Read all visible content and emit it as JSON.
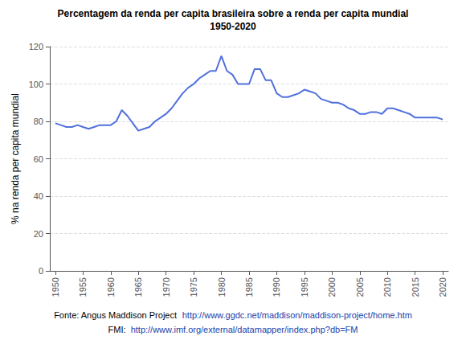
{
  "chart_data": {
    "type": "line",
    "title": "Percentagem da renda per capita brasileira sobre a renda per capita mundial",
    "subtitle": "1950-2020",
    "ylabel": "% na renda per capita mundial",
    "x": [
      1950,
      1951,
      1952,
      1953,
      1954,
      1955,
      1956,
      1957,
      1958,
      1959,
      1960,
      1961,
      1962,
      1963,
      1964,
      1965,
      1966,
      1967,
      1968,
      1969,
      1970,
      1971,
      1972,
      1973,
      1974,
      1975,
      1976,
      1977,
      1978,
      1979,
      1980,
      1981,
      1982,
      1983,
      1984,
      1985,
      1986,
      1987,
      1988,
      1989,
      1990,
      1991,
      1992,
      1993,
      1994,
      1995,
      1996,
      1997,
      1998,
      1999,
      2000,
      2001,
      2002,
      2003,
      2004,
      2005,
      2006,
      2007,
      2008,
      2009,
      2010,
      2011,
      2012,
      2013,
      2014,
      2015,
      2016,
      2017,
      2018,
      2019,
      2020
    ],
    "values": [
      79,
      78,
      77,
      77,
      78,
      77,
      76,
      77,
      78,
      78,
      78,
      80,
      86,
      83,
      79,
      75,
      76,
      77,
      80,
      82,
      84,
      87,
      91,
      95,
      98,
      100,
      103,
      105,
      107,
      107,
      115,
      107,
      105,
      100,
      100,
      100,
      108,
      108,
      102,
      102,
      95,
      93,
      93,
      94,
      95,
      97,
      96,
      95,
      92,
      91,
      90,
      90,
      89,
      87,
      86,
      84,
      84,
      85,
      85,
      84,
      87,
      87,
      86,
      85,
      84,
      82,
      82,
      82,
      82,
      82,
      81
    ],
    "xlim": [
      1949,
      2021
    ],
    "xticks": [
      1950,
      1955,
      1960,
      1965,
      1970,
      1975,
      1980,
      1985,
      1990,
      1995,
      2000,
      2005,
      2010,
      2015,
      2020
    ],
    "ylim": [
      0,
      120
    ],
    "yticks": [
      0,
      20,
      40,
      60,
      80,
      100,
      120
    ],
    "grid": true,
    "annotations": [
      "Fonte: Angus Maddison Project",
      "http://www.ggdc.net/maddison/maddison-project/home.htm",
      "FMI:",
      "http://www.imf.org/external/datamapper/index.php?db=FM"
    ]
  }
}
